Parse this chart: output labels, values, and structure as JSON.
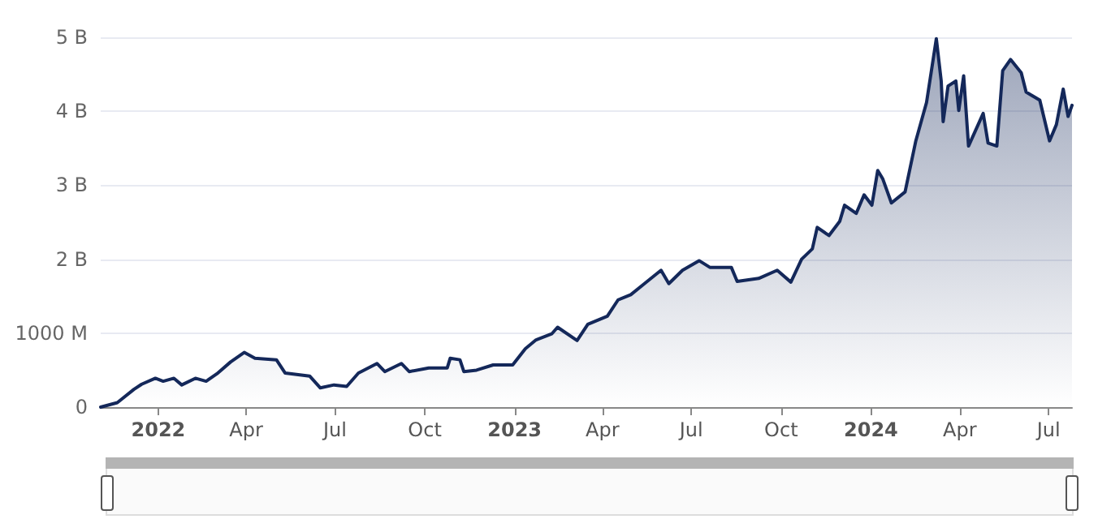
{
  "chart_data": {
    "type": "area",
    "x": [
      "2021-11-03",
      "2021-11-20",
      "2021-12-07",
      "2021-12-15",
      "2021-12-29",
      "2022-01-06",
      "2022-01-17",
      "2022-01-25",
      "2022-02-08",
      "2022-02-19",
      "2022-03-02",
      "2022-03-16",
      "2022-03-30",
      "2022-04-10",
      "2022-05-02",
      "2022-05-11",
      "2022-06-05",
      "2022-06-16",
      "2022-06-30",
      "2022-07-13",
      "2022-07-25",
      "2022-08-13",
      "2022-08-21",
      "2022-09-07",
      "2022-09-15",
      "2022-10-05",
      "2022-10-24",
      "2022-10-27",
      "2022-11-06",
      "2022-11-10",
      "2022-11-23",
      "2022-12-10",
      "2022-12-30",
      "2023-01-12",
      "2023-01-23",
      "2023-02-08",
      "2023-02-14",
      "2023-03-06",
      "2023-03-17",
      "2023-04-06",
      "2023-04-17",
      "2023-04-30",
      "2023-05-14",
      "2023-05-31",
      "2023-06-08",
      "2023-06-22",
      "2023-07-09",
      "2023-07-20",
      "2023-08-11",
      "2023-08-17",
      "2023-09-08",
      "2023-09-27",
      "2023-10-11",
      "2023-10-22",
      "2023-11-02",
      "2023-11-07",
      "2023-11-19",
      "2023-11-30",
      "2023-12-05",
      "2023-12-17",
      "2023-12-25",
      "2024-01-02",
      "2024-01-08",
      "2024-01-13",
      "2024-01-22",
      "2024-02-05",
      "2024-02-16",
      "2024-02-27",
      "2024-03-08",
      "2024-03-13",
      "2024-03-15",
      "2024-03-20",
      "2024-03-28",
      "2024-03-31",
      "2024-04-05",
      "2024-04-10",
      "2024-04-25",
      "2024-04-30",
      "2024-05-09",
      "2024-05-15",
      "2024-05-23",
      "2024-06-03",
      "2024-06-08",
      "2024-06-22",
      "2024-07-02",
      "2024-07-09",
      "2024-07-16",
      "2024-07-21",
      "2024-07-25"
    ],
    "series": [
      {
        "color": "#14285a",
        "values": [
          0,
          60000000,
          240000000,
          310000000,
          390000000,
          350000000,
          390000000,
          300000000,
          390000000,
          350000000,
          450000000,
          610000000,
          740000000,
          660000000,
          640000000,
          460000000,
          420000000,
          260000000,
          300000000,
          280000000,
          460000000,
          590000000,
          480000000,
          590000000,
          480000000,
          530000000,
          530000000,
          660000000,
          640000000,
          480000000,
          500000000,
          570000000,
          570000000,
          790000000,
          910000000,
          990000000,
          1080000000,
          900000000,
          1120000000,
          1230000000,
          1450000000,
          1520000000,
          1670000000,
          1850000000,
          1670000000,
          1850000000,
          1980000000,
          1890000000,
          1890000000,
          1700000000,
          1740000000,
          1850000000,
          1690000000,
          2000000000,
          2140000000,
          2430000000,
          2320000000,
          2510000000,
          2730000000,
          2620000000,
          2870000000,
          2730000000,
          3200000000,
          3090000000,
          2760000000,
          2910000000,
          3600000000,
          4120000000,
          4980000000,
          4410000000,
          3860000000,
          4340000000,
          4410000000,
          4010000000,
          4480000000,
          3530000000,
          3970000000,
          3570000000,
          3530000000,
          4550000000,
          4700000000,
          4520000000,
          4260000000,
          4150000000,
          3600000000,
          3820000000,
          4300000000,
          3930000000,
          4080000000
        ]
      }
    ],
    "xlim": [
      "2021-11-03",
      "2024-07-25"
    ],
    "xticks": [
      {
        "value": "2022-01-01",
        "label": "2022"
      },
      {
        "value": "2022-04-01",
        "label": "Apr"
      },
      {
        "value": "2022-07-01",
        "label": "Jul"
      },
      {
        "value": "2022-10-01",
        "label": "Oct"
      },
      {
        "value": "2023-01-01",
        "label": "2023"
      },
      {
        "value": "2023-04-01",
        "label": "Apr"
      },
      {
        "value": "2023-07-01",
        "label": "Jul"
      },
      {
        "value": "2023-10-01",
        "label": "Oct"
      },
      {
        "value": "2024-01-01",
        "label": "2024"
      },
      {
        "value": "2024-04-01",
        "label": "Apr"
      },
      {
        "value": "2024-07-01",
        "label": "Jul"
      }
    ],
    "ylim": [
      0,
      5000000000
    ],
    "yticks": [
      0,
      {
        "value": 1000000000,
        "label": "1000 M"
      },
      {
        "value": 2000000000,
        "label": "2 B"
      },
      {
        "value": 3000000000,
        "label": "3 B"
      },
      {
        "value": 4000000000,
        "label": "4 B"
      },
      {
        "value": 5000000000,
        "label": "5 B"
      }
    ],
    "grid": "y"
  }
}
